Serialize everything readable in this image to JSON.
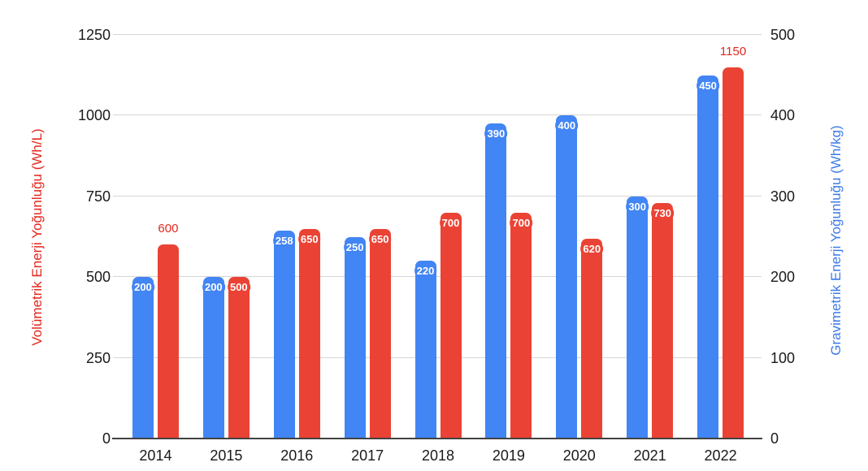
{
  "chart_data": {
    "type": "bar",
    "title": "",
    "legend": "none",
    "grid": true,
    "categories": [
      "2014",
      "2015",
      "2016",
      "2017",
      "2018",
      "2019",
      "2020",
      "2021",
      "2022"
    ],
    "series": [
      {
        "name": "Gravimetrik Enerji Yoğunluğu (Wh/kg)",
        "axis": "right",
        "color": "#4285F4",
        "values": [
          200,
          200,
          258,
          250,
          220,
          390,
          400,
          300,
          450
        ],
        "label_positions": [
          "in",
          "in",
          "in",
          "in",
          "in",
          "in",
          "in",
          "in",
          "in"
        ],
        "outside_label_color": "#3C7BE8"
      },
      {
        "name": "Volümetrik Enerji Yoğunluğu (Wh/L)",
        "axis": "left",
        "color": "#EA4335",
        "values": [
          600,
          500,
          650,
          650,
          700,
          700,
          620,
          730,
          1150
        ],
        "label_positions": [
          "out",
          "in",
          "in",
          "in",
          "in",
          "in",
          "in",
          "in",
          "out"
        ],
        "outside_label_color": "#E3271E"
      }
    ],
    "left_axis": {
      "title": "Volümetrik Enerji Yoğunluğu (Wh/L)",
      "color": "#E3271E",
      "min": 0,
      "max": 1250,
      "ticks": [
        0,
        250,
        500,
        750,
        1000,
        1250
      ]
    },
    "right_axis": {
      "title": "Gravimetrik Enerji Yoğunluğu (Wh/kg)",
      "color": "#3C7BE8",
      "min": 0,
      "max": 500,
      "ticks": [
        0,
        100,
        200,
        300,
        400,
        500
      ]
    },
    "colors": {
      "gridline": "#d6d6d6",
      "baseline": "#424242",
      "tick_text": "#1a1a1a",
      "background": "#ffffff"
    }
  }
}
